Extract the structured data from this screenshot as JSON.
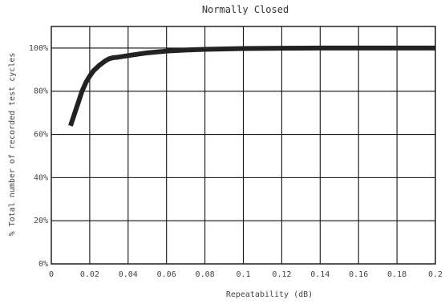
{
  "chart_data": {
    "type": "line",
    "title": "Normally Closed",
    "xlabel": "Repeatability (dB)",
    "ylabel": "% Total number of recorded test cycles",
    "xlim": [
      0,
      0.2
    ],
    "ylim": [
      0,
      110
    ],
    "grid": true,
    "x_tick_labels": [
      "0",
      "0.02",
      "0.04",
      "0.06",
      "0.08",
      "0.1",
      "0.12",
      "0.14",
      "0.16",
      "0.18",
      "0.2"
    ],
    "y_tick_labels": [
      "0%",
      "20%",
      "40%",
      "60%",
      "80%",
      "100%"
    ],
    "x_ticks": [
      0,
      0.02,
      0.04,
      0.06,
      0.08,
      0.1,
      0.12,
      0.14,
      0.16,
      0.18,
      0.2
    ],
    "y_ticks": [
      0,
      20,
      40,
      60,
      80,
      100
    ],
    "line_color": "#222222",
    "series": [
      {
        "x": [
          0.01,
          0.013,
          0.016,
          0.018,
          0.02,
          0.022,
          0.025,
          0.028,
          0.03,
          0.032,
          0.035,
          0.04,
          0.05,
          0.06,
          0.07,
          0.08,
          0.09,
          0.1,
          0.12,
          0.14,
          0.16,
          0.18,
          0.2
        ],
        "y": [
          64,
          72,
          80,
          84,
          87,
          89.5,
          92,
          94,
          95,
          95.5,
          95.8,
          96.5,
          97.8,
          98.6,
          99.1,
          99.4,
          99.6,
          99.8,
          99.9,
          100,
          100,
          100,
          100
        ]
      }
    ]
  }
}
